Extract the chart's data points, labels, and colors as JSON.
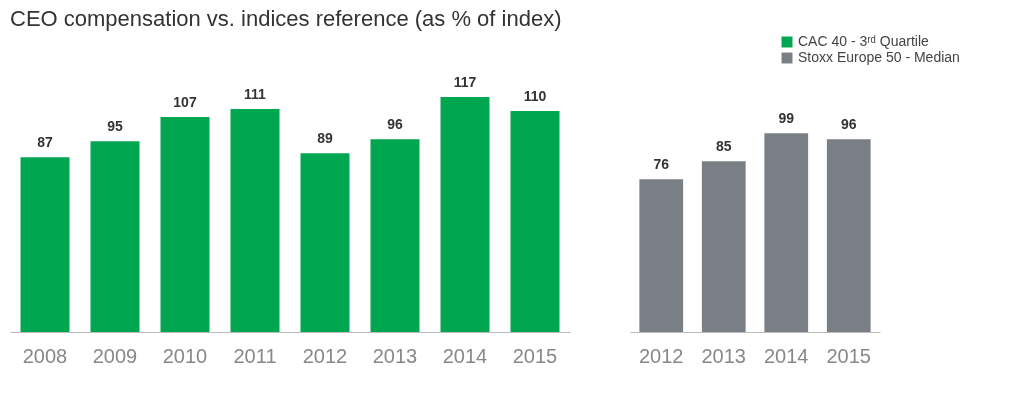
{
  "chart_data": [
    {
      "type": "bar",
      "title": "CEO compensation vs. indices reference (as % of index)",
      "categories": [
        "2008",
        "2009",
        "2010",
        "2011",
        "2012",
        "2013",
        "2014",
        "2015"
      ],
      "data_labels": true,
      "legend": "top right",
      "series": [
        {
          "name": "CAC 40 - 3ʳᵈ Quartile",
          "color": "#00a650",
          "values": [
            87,
            95,
            107,
            111,
            89,
            96,
            117,
            110
          ]
        }
      ]
    },
    {
      "type": "bar",
      "categories": [
        "2012",
        "2013",
        "2014",
        "2015"
      ],
      "data_labels": true,
      "legend": "top right",
      "series": [
        {
          "name": "Stoxx Europe 50 - Median",
          "color": "#7a7f86",
          "values": [
            76,
            85,
            99,
            96
          ]
        }
      ]
    }
  ]
}
